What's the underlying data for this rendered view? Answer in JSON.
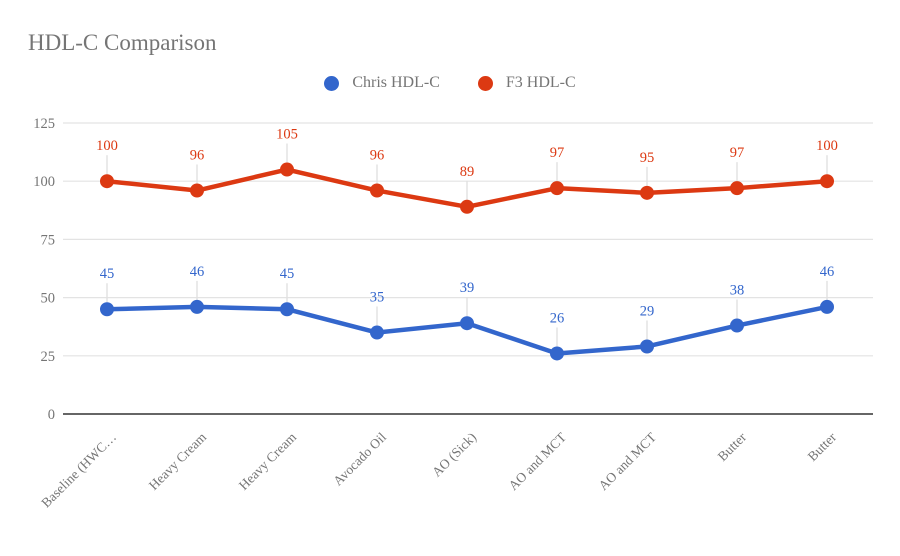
{
  "chart_data": {
    "type": "line",
    "title": "HDL-C Comparison",
    "categories": [
      "Baseline (HWC…",
      "Heavy Cream",
      "Heavy Cream",
      "Avocado Oil",
      "AO (Sick)",
      "AO and MCT",
      "AO and MCT",
      "Butter",
      "Butter"
    ],
    "series": [
      {
        "name": "Chris HDL-C",
        "color": "#3366cc",
        "values": [
          45,
          46,
          45,
          35,
          39,
          26,
          29,
          38,
          46
        ]
      },
      {
        "name": "F3 HDL-C",
        "color": "#dc3912",
        "values": [
          100,
          96,
          105,
          96,
          89,
          97,
          95,
          97,
          100
        ]
      }
    ],
    "xlabel": "",
    "ylabel": "",
    "ylim": [
      0,
      125
    ],
    "yticks": [
      0,
      25,
      50,
      75,
      100,
      125
    ],
    "grid": true,
    "legend_position": "top",
    "point_labels": true
  },
  "colors": {
    "background": "#ffffff",
    "title_text": "#757575",
    "legend_text": "#757575",
    "axis_tick_text": "#757575",
    "gridline": "#e3e3e3",
    "baseline_axis": "#333333",
    "label_callout": "#e0e0e0",
    "series_blue": "#3366cc",
    "series_red": "#dc3912"
  }
}
